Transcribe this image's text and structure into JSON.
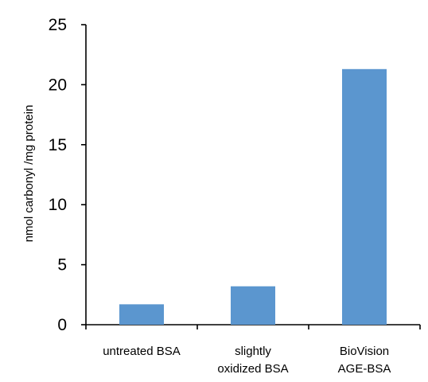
{
  "chart_data": {
    "type": "bar",
    "categories": [
      [
        "untreated BSA"
      ],
      [
        "slightly",
        "oxidized BSA"
      ],
      [
        "BioVision",
        "AGE-BSA"
      ]
    ],
    "values": [
      1.7,
      3.2,
      21.3
    ],
    "title": "",
    "xlabel": "",
    "ylabel": "nmol carbonyl /mg protein",
    "ylim": [
      0,
      25
    ],
    "yticks": [
      0,
      5,
      10,
      15,
      20,
      25
    ],
    "grid": false,
    "legend": "none",
    "bar_color": "#5b96cf",
    "axis_color": "#000000"
  }
}
